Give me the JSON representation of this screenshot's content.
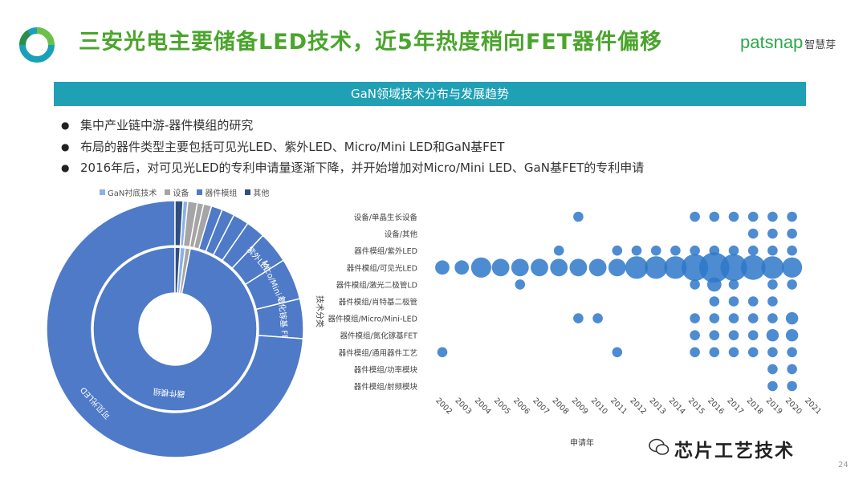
{
  "header": {
    "title": "三安光电主要储备LED技术，近5年热度稍向FET器件偏移",
    "brand": "patsnap",
    "brand_cn": "智慧芽"
  },
  "banner": {
    "text": "GaN领域技术分布与发展趋势"
  },
  "bullets": [
    "集中产业链中游-器件模组的研究",
    "布局的器件类型主要包括可见光LED、紫外LED、Micro/Mini LED和GaN基FET",
    "2016年后，对可见光LED的专利申请量逐渐下降，并开始增加对Micro/Mini LED、GaN基FET的专利申请"
  ],
  "footer": {
    "watermark": "芯片工艺技术",
    "page": "24"
  },
  "colors": {
    "title_green": "#4aa52c",
    "banner_teal": "#1fa0b5",
    "donut_blue": "#4e7ac7",
    "bubble_blue": "#2f78c9"
  },
  "chart_data": [
    {
      "type": "pie",
      "subtype": "sunburst",
      "legend": [
        "GaN衬底技术",
        "设备",
        "器件模组",
        "其他"
      ],
      "legend_colors": [
        "#8db0e6",
        "#a5a5a5",
        "#4e7ac7",
        "#2f4f80"
      ],
      "legend_position": "top",
      "inner_ring": [
        {
          "label": "",
          "category": "GaN衬底技术",
          "value": 1.0
        },
        {
          "label": "",
          "category": "设备",
          "value": 1.0
        },
        {
          "label": "器件模组",
          "category": "器件模组",
          "value": 97.0
        },
        {
          "label": "",
          "category": "其他",
          "value": 1.0
        }
      ],
      "outer_ring": [
        {
          "label": "",
          "category": "GaN衬底技术",
          "value": 0.6
        },
        {
          "label": "",
          "category": "设备",
          "value": 1.2
        },
        {
          "label": "",
          "category": "设备",
          "value": 0.8
        },
        {
          "label": "",
          "category": "设备",
          "value": 1.0
        },
        {
          "label": "",
          "category": "器件模组",
          "value": 1.4
        },
        {
          "label": "",
          "category": "器件模组",
          "value": 1.6
        },
        {
          "label": "",
          "category": "器件模组",
          "value": 2.0
        },
        {
          "label": "",
          "category": "器件模组",
          "value": 2.4
        },
        {
          "label": "紫外LED",
          "category": "器件模组",
          "value": 4.0
        },
        {
          "label": "Mico/Mini LED",
          "category": "器件模组",
          "value": 5.2
        },
        {
          "label": "氮化镓基 FET",
          "category": "器件模组",
          "value": 5.0
        },
        {
          "label": "可见光LED",
          "category": "器件模组",
          "value": 73.8
        },
        {
          "label": "",
          "category": "其他",
          "value": 1.0
        }
      ]
    },
    {
      "type": "scatter",
      "subtype": "bubble",
      "xlabel": "申请年",
      "ylabel": "技术分类",
      "x": [
        "2002",
        "2003",
        "2004",
        "2005",
        "2006",
        "2007",
        "2008",
        "2009",
        "2010",
        "2011",
        "2012",
        "2013",
        "2014",
        "2015",
        "2016",
        "2017",
        "2018",
        "2019",
        "2020",
        "2021"
      ],
      "categories": [
        "设备/单晶生长设备",
        "设备/其他",
        "器件模组/紫外LED",
        "器件模组/可见光LED",
        "器件模组/激光二极管LD",
        "器件模组/肖特基二极管",
        "器件模组/Micro/Mini-LED",
        "器件模组/氮化镓基FET",
        "器件模组/通用器件工艺",
        "器件模组/功率模块",
        "器件模组/射频模块"
      ],
      "points": [
        {
          "y": "设备/单晶生长设备",
          "x": "2009",
          "size": 1
        },
        {
          "y": "设备/单晶生长设备",
          "x": "2015",
          "size": 1
        },
        {
          "y": "设备/单晶生长设备",
          "x": "2016",
          "size": 1
        },
        {
          "y": "设备/单晶生长设备",
          "x": "2017",
          "size": 1
        },
        {
          "y": "设备/单晶生长设备",
          "x": "2018",
          "size": 1
        },
        {
          "y": "设备/单晶生长设备",
          "x": "2019",
          "size": 1
        },
        {
          "y": "设备/单晶生长设备",
          "x": "2020",
          "size": 1
        },
        {
          "y": "设备/其他",
          "x": "2018",
          "size": 1
        },
        {
          "y": "设备/其他",
          "x": "2019",
          "size": 1
        },
        {
          "y": "设备/其他",
          "x": "2020",
          "size": 1
        },
        {
          "y": "器件模组/紫外LED",
          "x": "2008",
          "size": 1
        },
        {
          "y": "器件模组/紫外LED",
          "x": "2011",
          "size": 1
        },
        {
          "y": "器件模组/紫外LED",
          "x": "2012",
          "size": 1
        },
        {
          "y": "器件模组/紫外LED",
          "x": "2013",
          "size": 1
        },
        {
          "y": "器件模组/紫外LED",
          "x": "2014",
          "size": 1
        },
        {
          "y": "器件模组/紫外LED",
          "x": "2015",
          "size": 1
        },
        {
          "y": "器件模组/紫外LED",
          "x": "2016",
          "size": 1
        },
        {
          "y": "器件模组/紫外LED",
          "x": "2017",
          "size": 1
        },
        {
          "y": "器件模组/紫外LED",
          "x": "2018",
          "size": 1
        },
        {
          "y": "器件模组/紫外LED",
          "x": "2019",
          "size": 1
        },
        {
          "y": "器件模组/紫外LED",
          "x": "2020",
          "size": 1
        },
        {
          "y": "器件模组/可见光LED",
          "x": "2002",
          "size": 2
        },
        {
          "y": "器件模组/可见光LED",
          "x": "2003",
          "size": 2
        },
        {
          "y": "器件模组/可见光LED",
          "x": "2004",
          "size": 4
        },
        {
          "y": "器件模组/可见光LED",
          "x": "2005",
          "size": 3
        },
        {
          "y": "器件模组/可见光LED",
          "x": "2006",
          "size": 3
        },
        {
          "y": "器件模组/可见光LED",
          "x": "2007",
          "size": 3
        },
        {
          "y": "器件模组/可见光LED",
          "x": "2008",
          "size": 3
        },
        {
          "y": "器件模组/可见光LED",
          "x": "2009",
          "size": 3
        },
        {
          "y": "器件模组/可见光LED",
          "x": "2010",
          "size": 3
        },
        {
          "y": "器件模组/可见光LED",
          "x": "2011",
          "size": 3
        },
        {
          "y": "器件模组/可见光LED",
          "x": "2012",
          "size": 5
        },
        {
          "y": "器件模组/可见光LED",
          "x": "2013",
          "size": 5
        },
        {
          "y": "器件模组/可见光LED",
          "x": "2014",
          "size": 5
        },
        {
          "y": "器件模组/可见光LED",
          "x": "2015",
          "size": 7
        },
        {
          "y": "器件模组/可见光LED",
          "x": "2016",
          "size": 9
        },
        {
          "y": "器件模组/可见光LED",
          "x": "2017",
          "size": 7
        },
        {
          "y": "器件模组/可见光LED",
          "x": "2018",
          "size": 6
        },
        {
          "y": "器件模组/可见光LED",
          "x": "2019",
          "size": 5
        },
        {
          "y": "器件模组/可见光LED",
          "x": "2020",
          "size": 4
        },
        {
          "y": "器件模组/激光二极管LD",
          "x": "2006",
          "size": 1
        },
        {
          "y": "器件模组/激光二极管LD",
          "x": "2015",
          "size": 1
        },
        {
          "y": "器件模组/激光二极管LD",
          "x": "2016",
          "size": 2
        },
        {
          "y": "器件模组/激光二极管LD",
          "x": "2017",
          "size": 1
        },
        {
          "y": "器件模组/激光二极管LD",
          "x": "2019",
          "size": 1
        },
        {
          "y": "器件模组/激光二极管LD",
          "x": "2020",
          "size": 1
        },
        {
          "y": "器件模组/肖特基二极管",
          "x": "2016",
          "size": 1
        },
        {
          "y": "器件模组/肖特基二极管",
          "x": "2017",
          "size": 1
        },
        {
          "y": "器件模组/肖特基二极管",
          "x": "2018",
          "size": 1
        },
        {
          "y": "器件模组/肖特基二极管",
          "x": "2019",
          "size": 1
        },
        {
          "y": "器件模组/Micro/Mini-LED",
          "x": "2009",
          "size": 1
        },
        {
          "y": "器件模组/Micro/Mini-LED",
          "x": "2010",
          "size": 1
        },
        {
          "y": "器件模组/Micro/Mini-LED",
          "x": "2015",
          "size": 1
        },
        {
          "y": "器件模组/Micro/Mini-LED",
          "x": "2016",
          "size": 1
        },
        {
          "y": "器件模组/Micro/Mini-LED",
          "x": "2017",
          "size": 1
        },
        {
          "y": "器件模组/Micro/Mini-LED",
          "x": "2018",
          "size": 1
        },
        {
          "y": "器件模组/Micro/Mini-LED",
          "x": "2019",
          "size": 1
        },
        {
          "y": "器件模组/Micro/Mini-LED",
          "x": "2020",
          "size": 1.5
        },
        {
          "y": "器件模组/氮化镓基FET",
          "x": "2015",
          "size": 1
        },
        {
          "y": "器件模组/氮化镓基FET",
          "x": "2016",
          "size": 1
        },
        {
          "y": "器件模组/氮化镓基FET",
          "x": "2017",
          "size": 1
        },
        {
          "y": "器件模组/氮化镓基FET",
          "x": "2018",
          "size": 1
        },
        {
          "y": "器件模组/氮化镓基FET",
          "x": "2019",
          "size": 1.5
        },
        {
          "y": "器件模组/氮化镓基FET",
          "x": "2020",
          "size": 1.5
        },
        {
          "y": "器件模组/通用器件工艺",
          "x": "2002",
          "size": 1
        },
        {
          "y": "器件模组/通用器件工艺",
          "x": "2011",
          "size": 1
        },
        {
          "y": "器件模组/通用器件工艺",
          "x": "2015",
          "size": 1
        },
        {
          "y": "器件模组/通用器件工艺",
          "x": "2016",
          "size": 1
        },
        {
          "y": "器件模组/通用器件工艺",
          "x": "2017",
          "size": 1
        },
        {
          "y": "器件模组/通用器件工艺",
          "x": "2018",
          "size": 1
        },
        {
          "y": "器件模组/通用器件工艺",
          "x": "2019",
          "size": 1
        },
        {
          "y": "器件模组/通用器件工艺",
          "x": "2020",
          "size": 1
        },
        {
          "y": "器件模组/功率模块",
          "x": "2019",
          "size": 1
        },
        {
          "y": "器件模组/功率模块",
          "x": "2020",
          "size": 1
        },
        {
          "y": "器件模组/射频模块",
          "x": "2019",
          "size": 1
        },
        {
          "y": "器件模组/射频模块",
          "x": "2020",
          "size": 1
        }
      ]
    }
  ]
}
